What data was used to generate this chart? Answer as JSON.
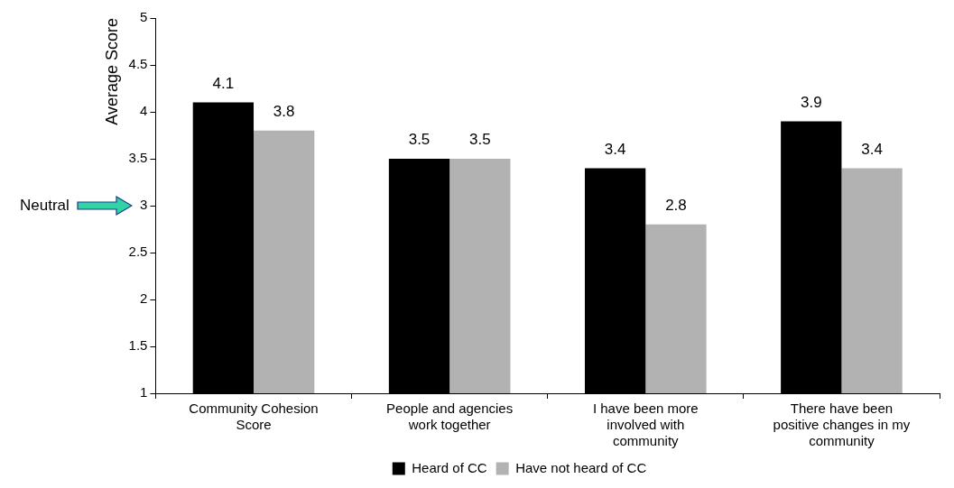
{
  "chart_data": {
    "type": "bar",
    "ylabel": "Average Score",
    "categories": [
      "Community Cohesion Score",
      "People and agencies work together",
      "I have been more involved with community",
      "There have been positive changes in my community"
    ],
    "series": [
      {
        "name": "Heard of CC",
        "color": "#000000",
        "values": [
          4.1,
          3.5,
          3.4,
          3.9
        ]
      },
      {
        "name": "Have not heard of CC",
        "color": "#b2b2b2",
        "values": [
          3.8,
          3.5,
          2.8,
          3.4
        ]
      }
    ],
    "ylim": [
      1,
      5
    ],
    "yticks": [
      1,
      1.5,
      2,
      2.5,
      3,
      3.5,
      4,
      4.5,
      5
    ],
    "annotations": [
      "Neutral"
    ],
    "data_labels": true,
    "grid": false,
    "legend": "bottom"
  }
}
